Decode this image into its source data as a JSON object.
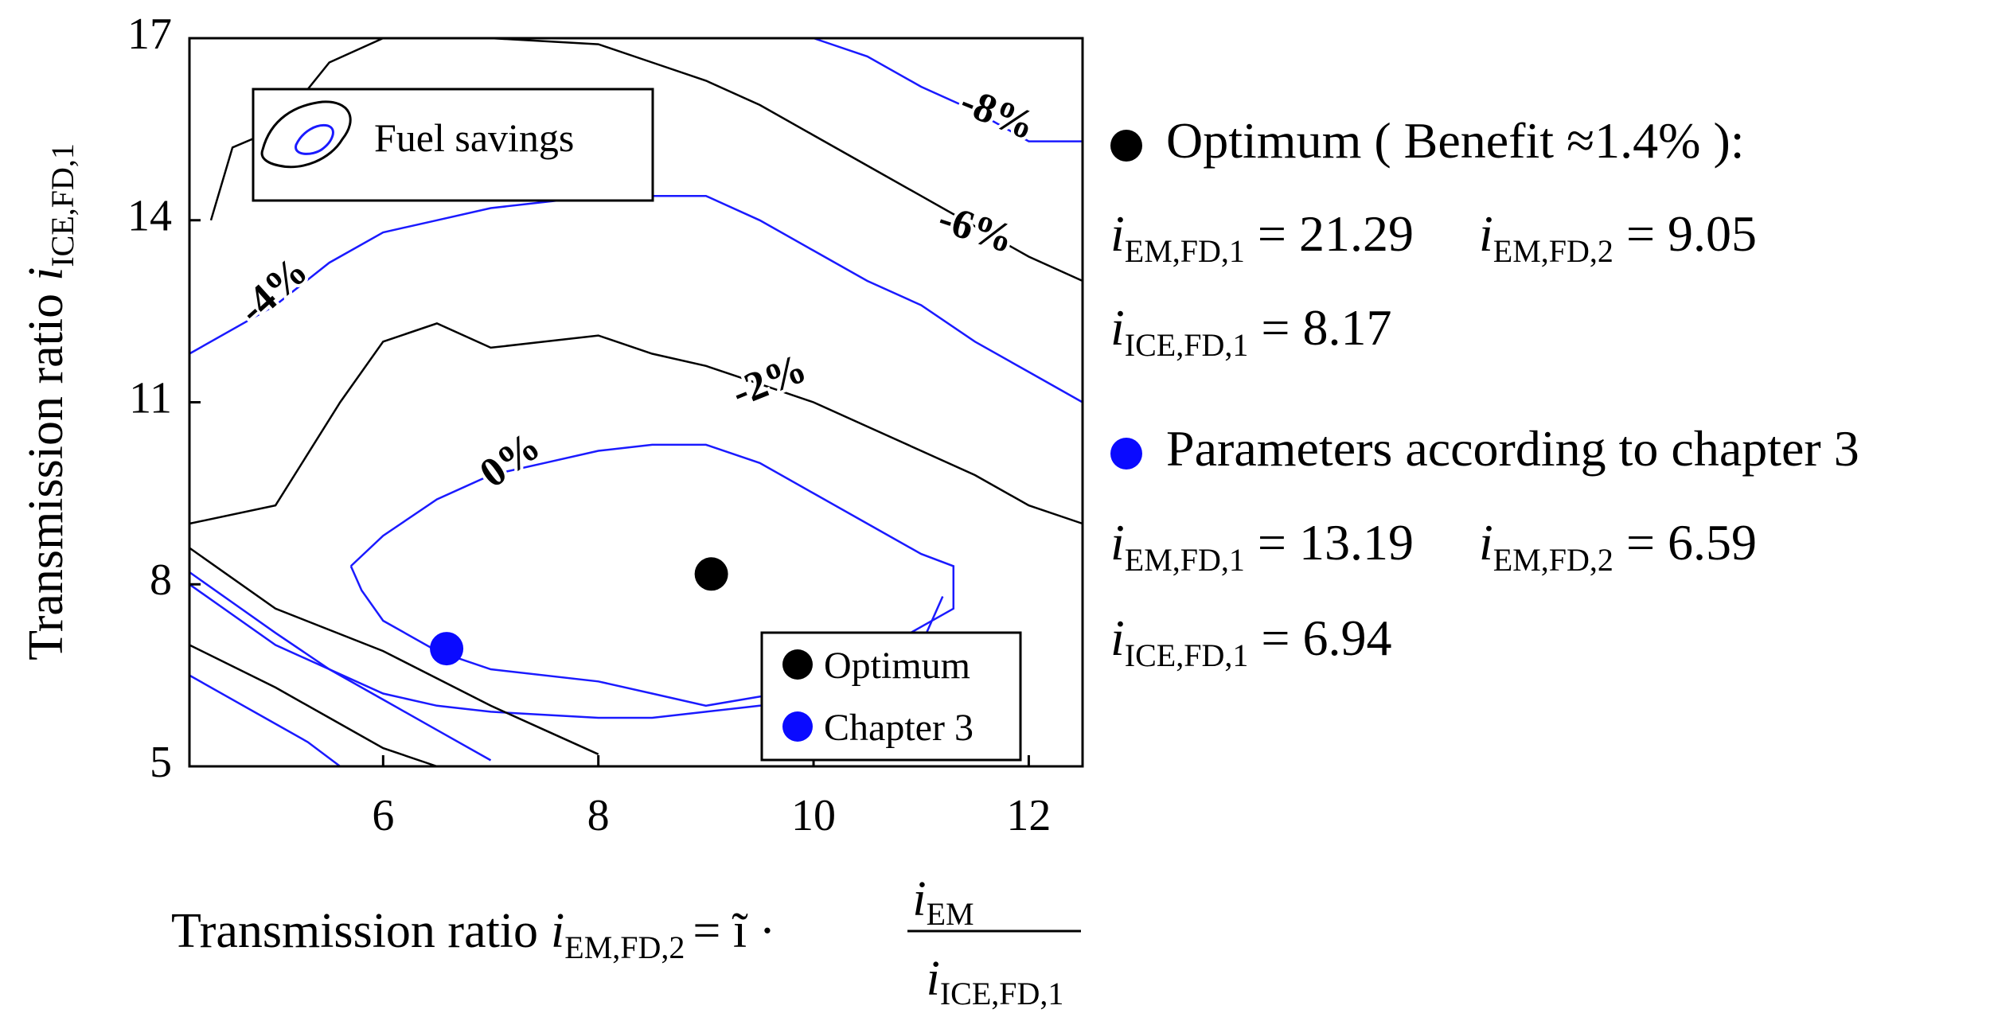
{
  "chart_data": {
    "type": "contour",
    "xlabel": "Transmission ratio",
    "xlabel_symbol": "i",
    "xlabel_sub": "EM,FD,2",
    "xlabel_eq": "= ĩ ·",
    "xlabel_num": "i",
    "xlabel_num_sub": "EM",
    "xlabel_den": "i",
    "xlabel_den_sub": "ICE,FD,1",
    "ylabel": "Transmission ratio",
    "ylabel_symbol": "i",
    "ylabel_sub": "ICE,FD,1",
    "xlim": [
      4.2,
      12.5
    ],
    "ylim": [
      5,
      17
    ],
    "xticks": [
      "6",
      "8",
      "10",
      "12"
    ],
    "xtick_values": [
      6,
      8,
      10,
      12
    ],
    "yticks": [
      "17",
      "14",
      "11",
      "8",
      "5"
    ],
    "ytick_values": [
      17,
      14,
      11,
      8,
      5
    ],
    "contour_levels": [
      {
        "label": "0%",
        "color": "#1a1aff",
        "x": [
          4.2,
          5.0,
          5.5,
          6.0,
          6.5,
          7.0,
          7.5,
          8.0,
          8.5,
          9.0,
          9.5,
          10.0,
          10.5,
          11.0,
          11.2
        ],
        "y": [
          8.2,
          7.2,
          6.6,
          6.2,
          6.0,
          5.9,
          5.85,
          5.8,
          5.8,
          5.9,
          6.0,
          6.2,
          6.5,
          7.0,
          7.8
        ]
      },
      {
        "label": "0%",
        "color": "#1a1aff",
        "x": [
          5.7,
          6.0,
          6.5,
          7.0,
          7.5,
          8.0,
          8.5,
          9.0,
          9.5,
          10.0,
          10.5,
          11.0,
          11.3,
          11.3,
          10.8,
          10.5,
          10.0,
          9.0,
          8.5,
          8.0,
          7.0,
          6.5,
          6.0,
          5.8,
          5.7
        ],
        "y": [
          8.3,
          8.8,
          9.4,
          9.8,
          10.0,
          10.2,
          10.3,
          10.3,
          10.0,
          9.5,
          9.0,
          8.5,
          8.3,
          7.6,
          7.1,
          6.7,
          6.3,
          6.0,
          6.2,
          6.4,
          6.6,
          6.9,
          7.4,
          7.9,
          8.3
        ]
      },
      {
        "label": "-2%",
        "color": "#000000",
        "x": [
          4.2,
          5.0,
          5.6,
          6.0,
          6.5,
          7.0,
          7.5,
          8.0,
          8.5,
          9.0,
          9.5,
          10.0,
          10.5,
          11.0,
          11.5,
          12.0,
          12.5
        ],
        "y": [
          9.0,
          9.3,
          11.0,
          12.0,
          12.3,
          11.9,
          12.0,
          12.1,
          11.8,
          11.6,
          11.3,
          11.0,
          10.6,
          10.2,
          9.8,
          9.3,
          9.0
        ]
      },
      {
        "label": "-2%",
        "color": "#000000",
        "x": [
          4.2,
          5.0,
          6.0,
          7.0,
          7.5,
          8.0
        ],
        "y": [
          8.6,
          7.6,
          6.9,
          6.0,
          5.6,
          5.2
        ]
      },
      {
        "label": "-4%",
        "color": "#1a1aff",
        "x": [
          4.2,
          5.0,
          5.5,
          6.0,
          6.5,
          7.0,
          7.5,
          8.0,
          8.5,
          9.0,
          9.5,
          10.0,
          10.5,
          11.0,
          11.5,
          12.0,
          12.5
        ],
        "y": [
          11.8,
          12.6,
          13.3,
          13.8,
          14.0,
          14.2,
          14.3,
          14.4,
          14.4,
          14.4,
          14.0,
          13.5,
          13.0,
          12.6,
          12.0,
          11.5,
          11.0
        ]
      },
      {
        "label": "-4%",
        "color": "#1a1aff",
        "x": [
          4.2,
          5.0,
          5.5,
          6.0,
          6.5,
          7.0
        ],
        "y": [
          8.0,
          7.0,
          6.6,
          6.1,
          5.6,
          5.1
        ]
      },
      {
        "label": "-6%",
        "color": "#000000",
        "x": [
          4.4,
          4.6,
          5.0,
          5.5,
          6.0,
          7.0,
          8.0,
          8.5,
          9.0,
          9.5,
          10.0,
          10.5,
          11.0,
          11.5,
          12.0,
          12.5
        ],
        "y": [
          14.0,
          15.2,
          15.5,
          16.6,
          17.0,
          17.0,
          16.9,
          16.6,
          16.3,
          15.9,
          15.4,
          14.9,
          14.4,
          13.9,
          13.4,
          13.0
        ]
      },
      {
        "label": "-6%",
        "color": "#000000",
        "x": [
          4.2,
          5.0,
          5.5,
          6.0,
          6.5
        ],
        "y": [
          7.0,
          6.3,
          5.8,
          5.3,
          5.0
        ]
      },
      {
        "label": "-8%",
        "color": "#1a1aff",
        "x": [
          10.0,
          10.5,
          11.0,
          11.5,
          12.0,
          12.5
        ],
        "y": [
          17.0,
          16.7,
          16.2,
          15.8,
          15.3,
          15.3
        ]
      },
      {
        "label": "-8%",
        "color": "#1a1aff",
        "x": [
          4.2,
          4.8,
          5.3,
          5.6
        ],
        "y": [
          6.5,
          5.9,
          5.4,
          5.0
        ]
      }
    ],
    "contour_labels": [
      {
        "text": "0%",
        "x": 7.2,
        "y": 10.0,
        "angle": -36
      },
      {
        "text": "-2%",
        "x": 9.6,
        "y": 11.3,
        "angle": -22
      },
      {
        "text": "-4%",
        "x": 5.0,
        "y": 12.8,
        "angle": -42
      },
      {
        "text": "-6%",
        "x": 11.5,
        "y": 13.8,
        "angle": 18
      },
      {
        "text": "-8%",
        "x": 11.7,
        "y": 15.7,
        "angle": 22
      }
    ],
    "points": [
      {
        "name": "Optimum",
        "x": 9.05,
        "y": 8.17,
        "color": "#000000"
      },
      {
        "name": "Chapter 3",
        "x": 6.59,
        "y": 6.94,
        "color": "#0a0aff"
      }
    ],
    "fuel_legend": "Fuel savings",
    "legend": [
      "Optimum",
      "Chapter 3"
    ],
    "legend_position": "bottom-right",
    "grid": false
  },
  "annotations": {
    "optimum": {
      "heading": "Optimum ( Benefit",
      "approx": "≈",
      "benefit": "1.4% ):",
      "em1_label": "i",
      "em1_sub": "EM,FD,1",
      "em1_value": "= 21.29",
      "em2_label": "i",
      "em2_sub": "EM,FD,2",
      "em2_value": "= 9.05",
      "ice_label": "i",
      "ice_sub": "ICE,FD,1",
      "ice_value": "= 8.17",
      "color": "#000000"
    },
    "chapter3": {
      "heading": "Parameters according to chapter 3",
      "em1_label": "i",
      "em1_sub": "EM,FD,1",
      "em1_value": "= 13.19",
      "em2_label": "i",
      "em2_sub": "EM,FD,2",
      "em2_value": "= 6.59",
      "ice_label": "i",
      "ice_sub": "ICE,FD,1",
      "ice_value": "= 6.94",
      "color": "#0a0aff"
    }
  }
}
